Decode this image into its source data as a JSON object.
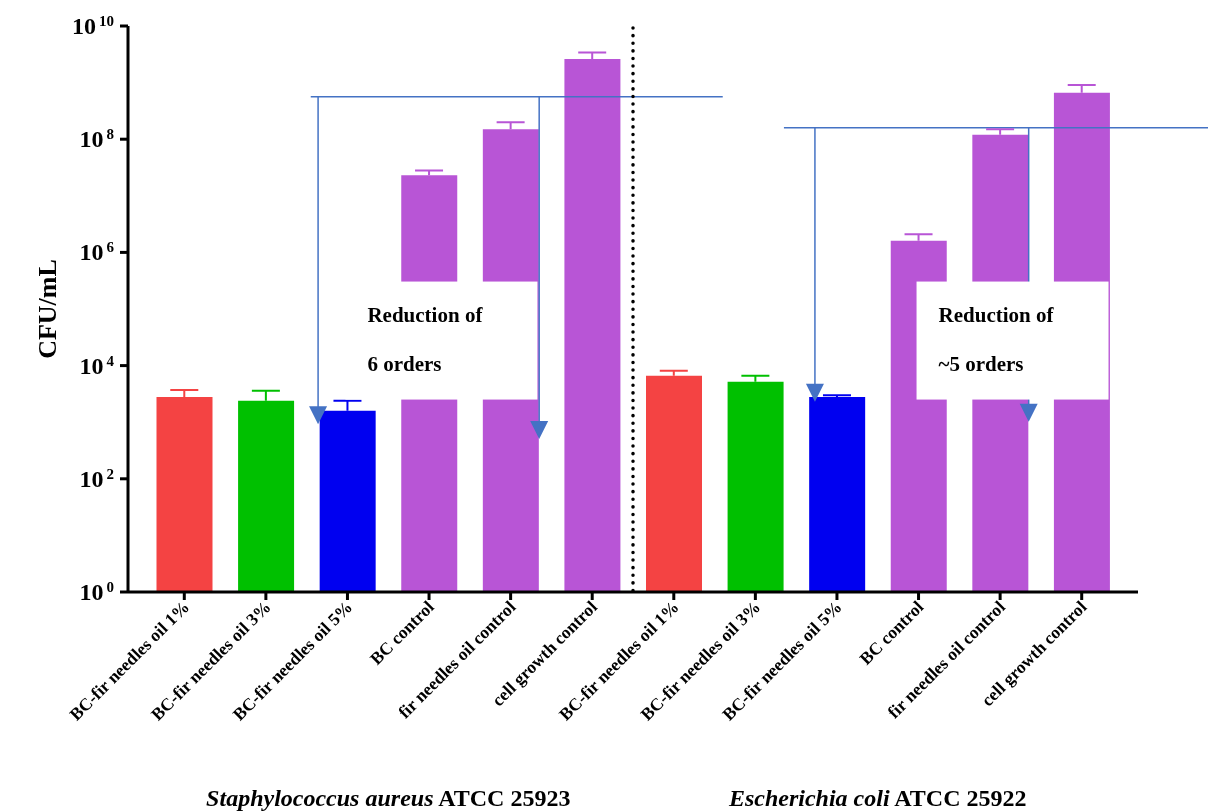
{
  "chart_data": {
    "type": "bar",
    "categories": [
      "BC-fir needles oil 1%",
      "BC-fir needles oil 3%",
      "BC-fir needles oil 5%",
      "BC control",
      "fir needles oil control",
      "cell growth control",
      "BC-fir needles oil 1%",
      "BC-fir needles oil 3%",
      "BC-fir needles oil 5%",
      "BC control",
      "fir needles oil control",
      "cell growth control"
    ],
    "values": [
      2800,
      2400,
      1600,
      23000000,
      150000000,
      2600000000,
      6600,
      5200,
      2800,
      1600000,
      120000000,
      660000000
    ],
    "errors": [
      [
        2800,
        3700
      ],
      [
        2400,
        3600
      ],
      [
        1600,
        2400
      ],
      [
        23000000,
        28000000
      ],
      [
        150000000,
        200000000
      ],
      [
        2600000000,
        3400000000
      ],
      [
        6600,
        8100
      ],
      [
        5200,
        6600
      ],
      [
        2800,
        3000
      ],
      [
        1600000,
        2100000
      ],
      [
        120000000,
        150000000
      ],
      [
        660000000,
        910000000
      ]
    ],
    "colors": [
      "#f44343",
      "#00c000",
      "#0000f0",
      "#b855d6",
      "#b855d6",
      "#b855d6",
      "#f44343",
      "#00c000",
      "#0000f0",
      "#b855d6",
      "#b855d6",
      "#b855d6"
    ],
    "ylabel": "CFU/mL",
    "log": "y",
    "ylim": [
      1,
      10000000000
    ],
    "yticks": [
      {
        "value": 1,
        "label": "10$^{0}$"
      },
      {
        "value": 100,
        "label": "10$^{2}$"
      },
      {
        "value": 10000,
        "label": "10$^{4}$"
      },
      {
        "value": 1000000,
        "label": "10$^{6}$"
      },
      {
        "value": 100000000,
        "label": "10$^{8}$"
      },
      {
        "value": 10000000000,
        "label": "10$^{10}$"
      }
    ],
    "ref_lines": [
      {
        "axis": "y",
        "value": 560000000,
        "color": "#4472c4"
      },
      {
        "axis": "y",
        "value": 160000000,
        "color": "#4472c4"
      }
    ],
    "annotations": [
      "Reduction of 6 orders",
      "Reduction of ~5 orders",
      "Staphylococcus aureus ATCC 25923",
      "Escherichia coli ATCC 25922"
    ],
    "grid": false,
    "legend": false
  }
}
